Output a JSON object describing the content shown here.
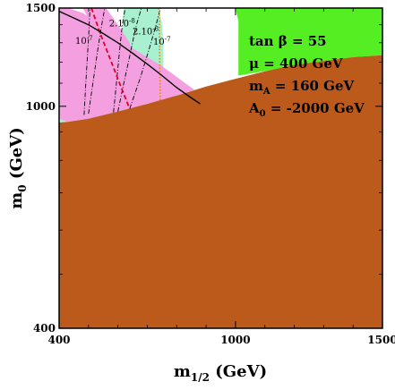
{
  "chart_data": {
    "type": "area",
    "xlabel": {
      "main": "m",
      "sub": "1/2",
      "unit": " (GeV)"
    },
    "ylabel": {
      "main": "m",
      "sub": "0",
      "unit": " (GeV)"
    },
    "xlim": [
      400,
      1500
    ],
    "ylim": [
      400,
      1500
    ],
    "x_scale": "linear",
    "y_scale": "log",
    "xticks": [
      {
        "value": 400,
        "label": "400"
      },
      {
        "value": 1000,
        "label": "1000"
      },
      {
        "value": 1500,
        "label": "1500"
      }
    ],
    "yticks": [
      {
        "value": 400,
        "label": "400"
      },
      {
        "value": 1000,
        "label": "1000"
      },
      {
        "value": 1500,
        "label": "1500"
      }
    ],
    "parameters": [
      {
        "main": "tan β = 55",
        "sub": "",
        "rest": ""
      },
      {
        "main": "μ = 400 GeV",
        "sub": "",
        "rest": ""
      },
      {
        "main": "m",
        "sub": "A",
        "rest": " = 160 GeV"
      },
      {
        "main": "A",
        "sub": "0",
        "rest": " = -2000 GeV"
      }
    ],
    "regions": [
      {
        "name": "excluded",
        "color": "#bb5a1a",
        "boundary": [
          [
            400,
            935
          ],
          [
            430,
            938
          ],
          [
            500,
            950
          ],
          [
            600,
            978
          ],
          [
            700,
            1010
          ],
          [
            800,
            1045
          ],
          [
            900,
            1085
          ],
          [
            1000,
            1120
          ],
          [
            1100,
            1155
          ],
          [
            1200,
            1185
          ],
          [
            1300,
            1205
          ],
          [
            1400,
            1225
          ],
          [
            1500,
            1235
          ]
        ]
      },
      {
        "name": "green-allowed",
        "color": "#55ee22",
        "polygon": [
          [
            1000,
            1500
          ],
          [
            1500,
            1500
          ],
          [
            1500,
            1235
          ],
          [
            1400,
            1225
          ],
          [
            1300,
            1205
          ],
          [
            1010,
            1135
          ],
          [
            1010,
            1420
          ]
        ]
      },
      {
        "name": "pink",
        "color": "#f4a0e0",
        "polygon": [
          [
            400,
            1480
          ],
          [
            450,
            1500
          ],
          [
            480,
            1500
          ],
          [
            520,
            1375
          ],
          [
            560,
            1255
          ],
          [
            600,
            1150
          ],
          [
            630,
            1075
          ],
          [
            670,
            1020
          ],
          [
            740,
            1005
          ],
          [
            800,
            1045
          ],
          [
            860,
            1070
          ],
          [
            750,
            1180
          ],
          [
            640,
            1280
          ],
          [
            560,
            1380
          ],
          [
            480,
            1470
          ],
          [
            430,
            1500
          ],
          [
            400,
            1500
          ],
          [
            400,
            950
          ],
          [
            430,
            938
          ],
          [
            500,
            950
          ],
          [
            560,
            965
          ],
          [
            600,
            978
          ],
          [
            640,
            990
          ],
          [
            700,
            1010
          ],
          [
            640,
            1300
          ],
          [
            600,
            1400
          ],
          [
            560,
            1500
          ],
          [
            480,
            1500
          ],
          [
            440,
            1500
          ],
          [
            420,
            1500
          ],
          [
            400,
            1500
          ]
        ]
      },
      {
        "name": "light-green",
        "color": "#a8f0d0",
        "polygon": [
          [
            400,
            1500
          ],
          [
            420,
            1500
          ],
          [
            440,
            1440
          ],
          [
            460,
            1380
          ],
          [
            480,
            1320
          ],
          [
            500,
            1260
          ],
          [
            520,
            1200
          ],
          [
            540,
            1140
          ],
          [
            560,
            1080
          ],
          [
            580,
            1020
          ],
          [
            600,
            978
          ],
          [
            560,
            965
          ],
          [
            500,
            950
          ],
          [
            430,
            938
          ],
          [
            400,
            935
          ]
        ]
      },
      {
        "name": "light-green-band",
        "color": "#a8f0d0",
        "polygon": [
          [
            620,
            1500
          ],
          [
            740,
            1500
          ],
          [
            750,
            1400
          ],
          [
            755,
            1300
          ],
          [
            755,
            1120
          ],
          [
            745,
            1060
          ],
          [
            700,
            1010
          ],
          [
            640,
            990
          ],
          [
            600,
            978
          ]
        ]
      }
    ],
    "series": [
      {
        "name": "10-7 (left)",
        "style": "dashdot",
        "color": "#000000",
        "points": [
          [
            485,
            965
          ],
          [
            490,
            1080
          ],
          [
            495,
            1200
          ],
          [
            500,
            1320
          ],
          [
            505,
            1500
          ]
        ]
      },
      {
        "name": "2.10-8 (left)",
        "style": "dashdot",
        "color": "#000000",
        "points": [
          [
            500,
            970
          ],
          [
            515,
            1100
          ],
          [
            530,
            1250
          ],
          [
            545,
            1400
          ],
          [
            555,
            1500
          ]
        ]
      },
      {
        "name": "2.10-8 (right)",
        "style": "dashdot",
        "color": "#000000",
        "points": [
          [
            600,
            978
          ],
          [
            620,
            1100
          ],
          [
            640,
            1230
          ],
          [
            660,
            1380
          ],
          [
            680,
            1500
          ]
        ]
      },
      {
        "name": "10-7 (right)",
        "style": "dashdot",
        "color": "#000000",
        "points": [
          [
            640,
            990
          ],
          [
            675,
            1120
          ],
          [
            705,
            1260
          ],
          [
            730,
            1400
          ],
          [
            745,
            1500
          ]
        ]
      },
      {
        "name": "2.10-8 (steep)",
        "style": "dashdot",
        "color": "#000000",
        "points": [
          [
            585,
            975
          ],
          [
            595,
            1100
          ],
          [
            605,
            1250
          ],
          [
            615,
            1400
          ],
          [
            625,
            1500
          ]
        ]
      },
      {
        "name": "red dashed",
        "style": "dashed",
        "color": "#dd0022",
        "points": [
          [
            510,
            1500
          ],
          [
            540,
            1350
          ],
          [
            570,
            1230
          ],
          [
            600,
            1120
          ],
          [
            630,
            1020
          ],
          [
            640,
            990
          ]
        ]
      },
      {
        "name": "orange dotted",
        "style": "dotted",
        "color": "#ee8800",
        "points": [
          [
            740,
            1500
          ],
          [
            741,
            1400
          ],
          [
            742,
            1250
          ],
          [
            743,
            1120
          ],
          [
            744,
            1020
          ]
        ]
      },
      {
        "name": "black curve",
        "style": "solid",
        "color": "#000000",
        "points": [
          [
            400,
            1480
          ],
          [
            450,
            1440
          ],
          [
            500,
            1400
          ],
          [
            550,
            1350
          ],
          [
            600,
            1300
          ],
          [
            650,
            1245
          ],
          [
            700,
            1190
          ],
          [
            750,
            1135
          ],
          [
            800,
            1080
          ],
          [
            850,
            1035
          ],
          [
            880,
            1010
          ]
        ]
      }
    ],
    "annotations": [
      {
        "base": "10",
        "sup": "-7",
        "x": 455,
        "y": 1295
      },
      {
        "base": "2.10",
        "sup": "-8",
        "x": 570,
        "y": 1390
      },
      {
        "base": "2.10",
        "sup": "-8",
        "x": 650,
        "y": 1345
      },
      {
        "base": "10",
        "sup": "-7",
        "x": 720,
        "y": 1290
      }
    ]
  }
}
